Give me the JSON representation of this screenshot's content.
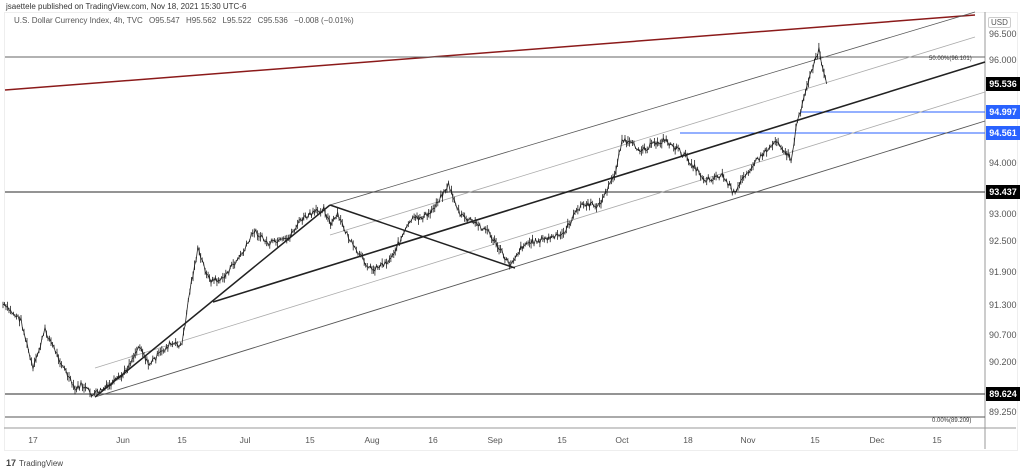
{
  "header": {
    "published": "jsaettele published on TradingView.com, Nov 18, 2021 15:30 UTC-6"
  },
  "legend": {
    "symbol": "U.S. Dollar Currency Index, 4h, TVC",
    "open": "O95.547",
    "high": "H95.562",
    "low": "L95.522",
    "close": "C95.536",
    "change": "−0.008 (−0.01%)"
  },
  "footer": {
    "logo": "17",
    "brand": "TradingView"
  },
  "colors": {
    "price_label": "#000000",
    "level_blue": "#2962ff",
    "trendline_red": "#8b1a1a",
    "candles": "#222222"
  },
  "chart_data": {
    "type": "line",
    "title": "U.S. Dollar Currency Index, 4h, TVC",
    "currency": "USD",
    "x_ticks": [
      "17",
      "Jun",
      "15",
      "Jul",
      "15",
      "Aug",
      "16",
      "Sep",
      "15",
      "Oct",
      "18",
      "Nov",
      "15",
      "Dec",
      "15"
    ],
    "y_ticks": [
      "96.500",
      "96.000",
      "94.000",
      "93.000",
      "92.500",
      "91.900",
      "91.300",
      "90.700",
      "90.200",
      "89.250"
    ],
    "price_labels": [
      {
        "value": "95.536",
        "kind": "last"
      },
      {
        "value": "94.997",
        "kind": "blue"
      },
      {
        "value": "94.561",
        "kind": "blue"
      },
      {
        "value": "93.437",
        "kind": "level"
      },
      {
        "value": "89.624",
        "kind": "level"
      }
    ],
    "fib_labels": [
      "50.00%(96.101)",
      "0.00%(89.209)"
    ],
    "grid": false,
    "series": [
      {
        "values": [
          [
            "2021-05-12",
            91.3
          ],
          [
            "2021-05-15",
            91.0
          ],
          [
            "2021-05-17",
            90.06
          ],
          [
            "2021-05-19",
            90.8
          ],
          [
            "2021-05-24",
            89.69
          ],
          [
            "2021-05-25",
            89.79
          ],
          [
            "2021-05-27",
            89.6
          ],
          [
            "2021-05-30",
            89.79
          ],
          [
            "2021-06-01",
            89.96
          ],
          [
            "2021-06-05",
            90.52
          ],
          [
            "2021-06-07",
            90.15
          ],
          [
            "2021-06-12",
            90.52
          ],
          [
            "2021-06-15",
            90.52
          ],
          [
            "2021-06-17",
            91.57
          ],
          [
            "2021-06-19",
            92.33
          ],
          [
            "2021-06-22",
            91.75
          ],
          [
            "2021-06-25",
            91.75
          ],
          [
            "2021-07-01",
            92.33
          ],
          [
            "2021-07-03",
            92.65
          ],
          [
            "2021-07-06",
            92.44
          ],
          [
            "2021-07-10",
            92.51
          ],
          [
            "2021-07-13",
            92.79
          ],
          [
            "2021-07-19",
            92.96
          ],
          [
            "2021-07-21",
            92.72
          ],
          [
            "2021-07-23",
            92.86
          ],
          [
            "2021-07-28",
            92.33
          ],
          [
            "2021-08-02",
            91.94
          ],
          [
            "2021-08-06",
            92.13
          ],
          [
            "2021-08-11",
            92.79
          ],
          [
            "2021-08-15",
            92.86
          ],
          [
            "2021-08-20",
            93.48
          ],
          [
            "2021-08-23",
            92.86
          ],
          [
            "2021-08-30",
            92.65
          ],
          [
            "2021-09-04",
            92.04
          ],
          [
            "2021-09-07",
            92.44
          ],
          [
            "2021-09-15",
            92.58
          ],
          [
            "2021-09-20",
            93.0
          ],
          [
            "2021-09-25",
            93.0
          ],
          [
            "2021-09-29",
            93.71
          ],
          [
            "2021-10-01",
            94.45
          ],
          [
            "2021-10-06",
            94.26
          ],
          [
            "2021-10-12",
            94.45
          ],
          [
            "2021-10-17",
            94.16
          ],
          [
            "2021-10-22",
            93.6
          ],
          [
            "2021-10-26",
            93.71
          ],
          [
            "2021-10-29",
            93.24
          ],
          [
            "2021-10-31",
            93.71
          ],
          [
            "2021-11-04",
            94.16
          ],
          [
            "2021-11-07",
            94.45
          ],
          [
            "2021-11-10",
            94.06
          ],
          [
            "2021-11-11",
            94.64
          ],
          [
            "2021-11-13",
            95.42
          ],
          [
            "2021-11-16",
            96.19
          ],
          [
            "2021-11-17",
            95.81
          ],
          [
            "2021-11-18",
            95.536
          ]
        ]
      }
    ]
  }
}
